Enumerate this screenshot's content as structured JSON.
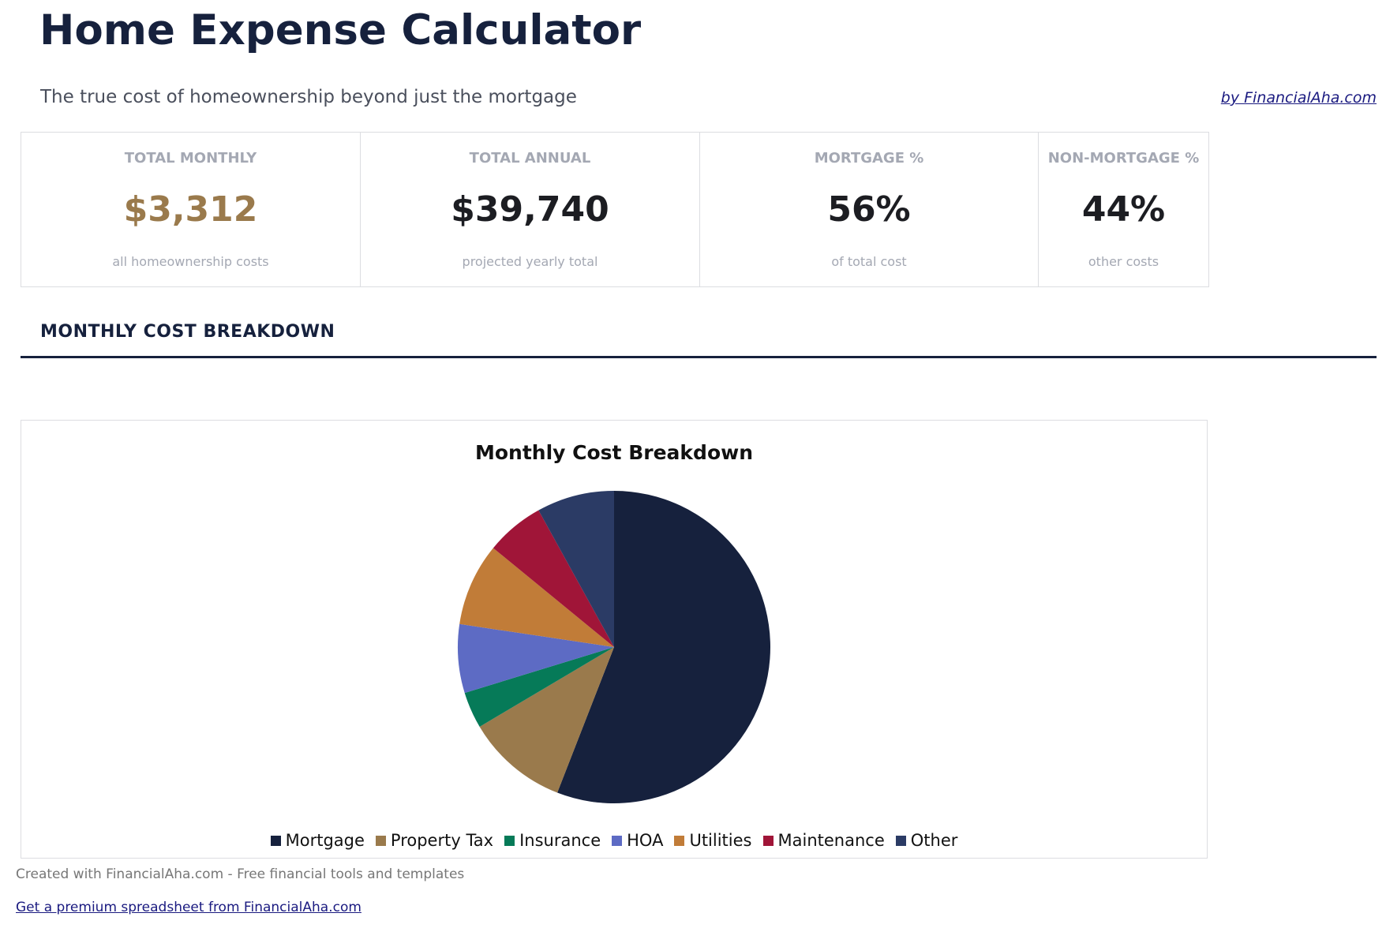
{
  "header": {
    "title": "Home Expense Calculator",
    "subtitle": "The true cost of homeownership beyond just the mortgage",
    "byline": "by FinancialAha.com"
  },
  "cards": [
    {
      "label": "TOTAL MONTHLY",
      "value": "$3,312",
      "sub": "all homeownership costs",
      "color": "#9a7a4c"
    },
    {
      "label": "TOTAL ANNUAL",
      "value": "$39,740",
      "sub": "projected yearly total",
      "color": "#1c1d22"
    },
    {
      "label": "MORTGAGE %",
      "value": "56%",
      "sub": "of total cost",
      "color": "#1c1d22"
    },
    {
      "label": "NON-MORTGAGE %",
      "value": "44%",
      "sub": "other costs",
      "color": "#1c1d22"
    }
  ],
  "section": {
    "heading": "MONTHLY COST BREAKDOWN"
  },
  "chart_data": {
    "type": "pie",
    "title": "Monthly Cost Breakdown",
    "categories": [
      "Mortgage",
      "Property Tax",
      "Insurance",
      "HOA",
      "Utilities",
      "Maintenance",
      "Other"
    ],
    "values": [
      1852,
      350,
      125,
      235,
      284,
      200,
      266
    ],
    "colors": [
      "#16213d",
      "#9a7a4c",
      "#067a58",
      "#5d6bc4",
      "#c17c38",
      "#a01538",
      "#2b3b65"
    ],
    "legend": "bottom"
  },
  "footer": {
    "text": "Created with FinancialAha.com - Free financial tools and templates",
    "link": "Get a premium spreadsheet from FinancialAha.com"
  }
}
